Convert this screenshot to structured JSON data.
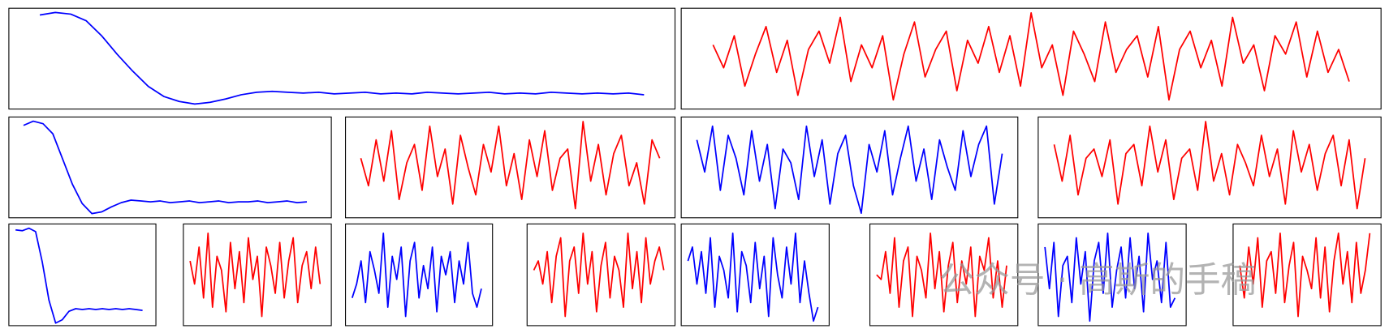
{
  "chart_data": [
    {
      "type": "line",
      "color": "#0000ff",
      "xlim": [
        -2,
        41
      ],
      "ylim": [
        -0.15,
        1.05
      ],
      "values": [
        0.97,
        1.0,
        0.98,
        0.9,
        0.72,
        0.5,
        0.3,
        0.12,
        0.0,
        -0.06,
        -0.09,
        -0.07,
        -0.03,
        0.02,
        0.05,
        0.06,
        0.05,
        0.04,
        0.05,
        0.03,
        0.04,
        0.05,
        0.03,
        0.04,
        0.03,
        0.05,
        0.04,
        0.03,
        0.04,
        0.05,
        0.03,
        0.04,
        0.03,
        0.05,
        0.04,
        0.03,
        0.04,
        0.03,
        0.04,
        0.02
      ]
    },
    {
      "type": "line",
      "color": "#ff0000",
      "xlim": [
        -3,
        63
      ],
      "ylim": [
        -1.1,
        1.1
      ],
      "values": [
        0.3,
        -0.2,
        0.5,
        -0.6,
        0.1,
        0.7,
        -0.3,
        0.4,
        -0.8,
        0.2,
        0.6,
        -0.1,
        0.9,
        -0.5,
        0.3,
        -0.2,
        0.5,
        -0.9,
        0.1,
        0.8,
        -0.4,
        0.2,
        0.6,
        -0.7,
        0.4,
        -0.1,
        0.7,
        -0.3,
        0.5,
        -0.6,
        1.0,
        -0.2,
        0.3,
        -0.8,
        0.6,
        0.1,
        -0.5,
        0.8,
        -0.3,
        0.2,
        0.5,
        -0.4,
        0.7,
        -0.9,
        0.2,
        0.6,
        -0.2,
        0.4,
        -0.6,
        0.9,
        -0.1,
        0.3,
        -0.7,
        0.5,
        0.1,
        0.8,
        -0.4,
        0.6,
        -0.3,
        0.2,
        -0.5
      ]
    },
    {
      "type": "line",
      "color": "#0000ff",
      "xlim": [
        -1.5,
        31.5
      ],
      "ylim": [
        -0.15,
        1.05
      ],
      "values": [
        0.95,
        1.0,
        0.97,
        0.85,
        0.55,
        0.25,
        0.02,
        -0.1,
        -0.08,
        -0.02,
        0.03,
        0.06,
        0.05,
        0.04,
        0.05,
        0.03,
        0.04,
        0.05,
        0.03,
        0.04,
        0.05,
        0.03,
        0.04,
        0.04,
        0.05,
        0.03,
        0.04,
        0.05,
        0.03,
        0.04
      ]
    },
    {
      "type": "line",
      "color": "#ff0000",
      "xlim": [
        -2,
        41
      ],
      "ylim": [
        -1.1,
        1.1
      ],
      "values": [
        0.2,
        -0.4,
        0.6,
        -0.3,
        0.8,
        -0.7,
        0.1,
        0.5,
        -0.5,
        0.9,
        -0.2,
        0.4,
        -0.8,
        0.7,
        0.0,
        -0.6,
        0.5,
        -0.1,
        0.9,
        -0.4,
        0.3,
        -0.7,
        0.6,
        -0.2,
        0.8,
        -0.5,
        0.2,
        0.4,
        -0.9,
        1.0,
        -0.3,
        0.5,
        -0.6,
        0.3,
        0.7,
        -0.4,
        0.1,
        -0.8,
        0.6,
        0.2
      ]
    },
    {
      "type": "line",
      "color": "#0000ff",
      "xlim": [
        -2,
        41
      ],
      "ylim": [
        -1.1,
        1.1
      ],
      "values": [
        0.6,
        -0.1,
        0.9,
        -0.5,
        0.7,
        0.2,
        -0.6,
        0.8,
        -0.3,
        0.5,
        -0.9,
        0.4,
        0.1,
        -0.7,
        0.9,
        -0.2,
        0.6,
        -0.8,
        0.3,
        0.7,
        -0.4,
        -1.0,
        0.5,
        -0.1,
        0.8,
        -0.6,
        0.2,
        0.9,
        -0.3,
        0.4,
        -0.7,
        0.6,
        0.0,
        -0.5,
        0.8,
        -0.2,
        0.5,
        0.9,
        -0.8,
        0.3
      ]
    },
    {
      "type": "line",
      "color": "#ff0000",
      "xlim": [
        -2,
        41
      ],
      "ylim": [
        -1.1,
        1.1
      ],
      "values": [
        0.5,
        -0.3,
        0.7,
        -0.6,
        0.2,
        0.4,
        -0.2,
        0.6,
        -0.8,
        0.3,
        0.5,
        -0.4,
        0.9,
        -0.1,
        0.6,
        -0.7,
        0.2,
        0.4,
        -0.5,
        1.0,
        -0.3,
        0.3,
        -0.6,
        0.5,
        0.1,
        -0.4,
        0.7,
        -0.2,
        0.4,
        -0.8,
        0.8,
        -0.1,
        0.5,
        -0.5,
        0.3,
        0.7,
        -0.4,
        0.6,
        -0.9,
        0.2
      ]
    },
    {
      "type": "line",
      "color": "#0000ff",
      "xlim": [
        -1,
        21
      ],
      "ylim": [
        -0.15,
        1.05
      ],
      "values": [
        0.98,
        0.97,
        1.0,
        0.96,
        0.6,
        0.15,
        -0.12,
        -0.08,
        0.02,
        0.05,
        0.04,
        0.05,
        0.04,
        0.05,
        0.04,
        0.05,
        0.04,
        0.05,
        0.04,
        0.03
      ]
    },
    {
      "type": "line",
      "color": "#ff0000",
      "xlim": [
        -1.5,
        31.5
      ],
      "ylim": [
        -1.1,
        1.1
      ],
      "values": [
        0.3,
        -0.2,
        0.6,
        -0.5,
        0.9,
        -0.7,
        0.4,
        0.1,
        -0.8,
        0.7,
        -0.3,
        0.5,
        -0.6,
        0.8,
        -0.1,
        0.4,
        -0.9,
        0.6,
        0.2,
        -0.4,
        0.7,
        -0.5,
        0.3,
        0.8,
        -0.6,
        0.2,
        0.5,
        -0.3,
        0.6,
        -0.2
      ]
    },
    {
      "type": "line",
      "color": "#0000ff",
      "xlim": [
        -1.5,
        31.5
      ],
      "ylim": [
        -1.1,
        1.1
      ],
      "values": [
        -0.5,
        -0.2,
        0.3,
        -0.6,
        0.5,
        0.1,
        -0.4,
        0.9,
        -0.7,
        0.4,
        -0.1,
        0.6,
        -0.9,
        0.3,
        0.7,
        -0.5,
        0.2,
        -0.3,
        0.6,
        -0.8,
        0.4,
        0.0,
        0.5,
        -0.6,
        0.3,
        -0.2,
        0.7,
        -0.4,
        -0.7,
        -0.3
      ]
    },
    {
      "type": "line",
      "color": "#ff0000",
      "xlim": [
        -1.5,
        31.5
      ],
      "ylim": [
        -1.1,
        1.1
      ],
      "values": [
        0.1,
        0.3,
        -0.2,
        0.5,
        -0.6,
        0.4,
        0.8,
        -0.9,
        0.3,
        0.6,
        -0.4,
        0.9,
        -0.2,
        0.5,
        -0.8,
        0.2,
        0.7,
        -0.5,
        0.4,
        0.1,
        -0.7,
        0.9,
        -0.3,
        0.5,
        -0.6,
        0.8,
        -0.2,
        0.3,
        0.6,
        0.1
      ]
    },
    {
      "type": "line",
      "color": "#0000ff",
      "xlim": [
        -1.5,
        31.5
      ],
      "ylim": [
        -1.1,
        1.1
      ],
      "values": [
        0.3,
        0.6,
        -0.2,
        0.5,
        -0.4,
        0.8,
        -0.7,
        0.4,
        0.1,
        -0.5,
        0.9,
        -0.8,
        0.5,
        0.2,
        -0.6,
        0.7,
        -0.3,
        0.4,
        -0.9,
        0.8,
        0.0,
        -0.5,
        0.6,
        -0.2,
        0.9,
        -0.6,
        0.3,
        -0.4,
        -1.0,
        -0.7
      ]
    },
    {
      "type": "line",
      "color": "#ff0000",
      "xlim": [
        -1.5,
        31.5
      ],
      "ylim": [
        -1.1,
        1.1
      ],
      "values": [
        0.0,
        -0.1,
        0.5,
        -0.4,
        0.8,
        -0.7,
        0.3,
        0.6,
        -0.9,
        0.4,
        0.1,
        -0.5,
        0.9,
        -0.3,
        0.5,
        -0.8,
        0.2,
        0.7,
        -0.6,
        0.3,
        -0.2,
        0.6,
        -0.9,
        0.4,
        0.1,
        0.8,
        -0.5,
        0.3,
        -0.7,
        0.2
      ]
    },
    {
      "type": "line",
      "color": "#0000ff",
      "xlim": [
        -1.5,
        31.5
      ],
      "ylim": [
        -1.1,
        1.1
      ],
      "values": [
        0.6,
        -0.3,
        0.7,
        -0.9,
        0.2,
        0.4,
        -0.6,
        0.8,
        -0.2,
        0.5,
        -1.0,
        0.3,
        0.7,
        -0.4,
        0.9,
        -0.7,
        0.1,
        0.6,
        -0.5,
        0.8,
        -0.3,
        0.4,
        -0.8,
        0.9,
        -0.1,
        0.3,
        -0.6,
        0.7,
        -0.7,
        -0.5
      ]
    },
    {
      "type": "line",
      "color": "#ff0000",
      "xlim": [
        -1.5,
        31.5
      ],
      "ylim": [
        -1.1,
        1.1
      ],
      "values": [
        0.2,
        -0.5,
        0.6,
        -0.2,
        0.8,
        -0.7,
        0.3,
        0.5,
        -0.4,
        0.9,
        -0.6,
        0.2,
        0.7,
        -0.9,
        0.4,
        0.1,
        -0.3,
        0.8,
        -0.5,
        0.6,
        -0.8,
        0.3,
        0.9,
        -0.2,
        0.5,
        -0.6,
        0.7,
        -0.4,
        0.1,
        0.9
      ]
    }
  ],
  "watermark": "公众号 · 高斯的手稿"
}
